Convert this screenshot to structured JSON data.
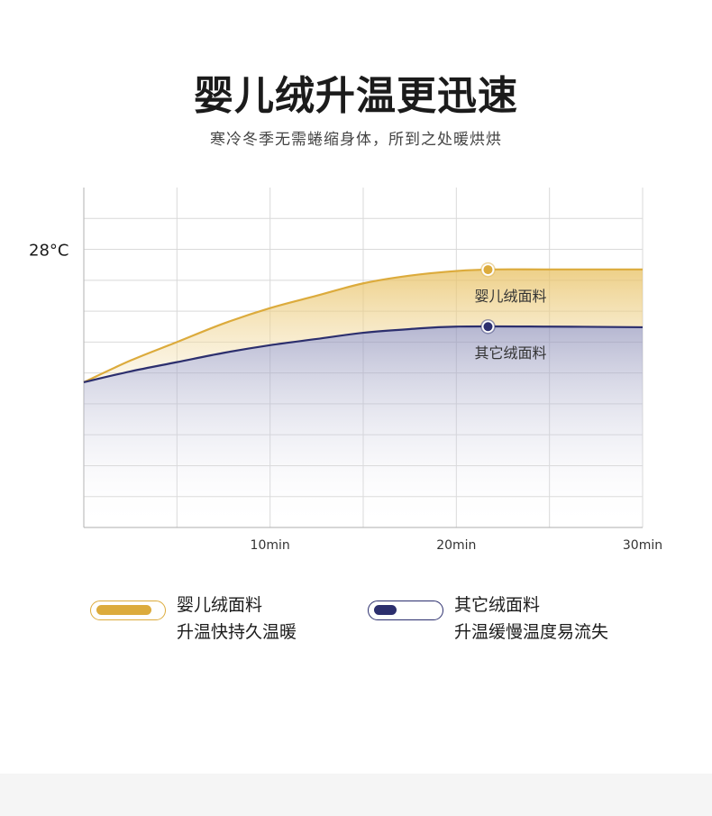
{
  "header": {
    "title": "婴儿绒升温更迅速",
    "subtitle": "寒冷冬季无需蜷缩身体，所到之处暖烘烘"
  },
  "colors": {
    "gold": "#dcab3c",
    "navy": "#2c2f6e",
    "grid": "#d9d9d9"
  },
  "chart_data": {
    "type": "area",
    "title": "",
    "xlabel": "",
    "ylabel": "",
    "xlim": [
      0,
      30
    ],
    "ylim": [
      19,
      30
    ],
    "x_ticks": [
      10,
      20,
      30
    ],
    "x_tick_labels": [
      "10min",
      "20min",
      "30min"
    ],
    "y_tick_labels": [
      {
        "value": 28,
        "label": "28°C"
      }
    ],
    "grid": true,
    "series": [
      {
        "name": "婴儿绒面料",
        "color": "#dcab3c",
        "x": [
          0,
          2.5,
          5,
          7.5,
          10,
          12.5,
          15,
          17.5,
          20,
          22,
          25,
          30
        ],
        "y": [
          23.7,
          24.4,
          25.0,
          25.6,
          26.1,
          26.5,
          26.9,
          27.15,
          27.3,
          27.35,
          27.35,
          27.35
        ],
        "marker_x": 21.7,
        "label": "婴儿绒面料"
      },
      {
        "name": "其它绒面料",
        "color": "#2c2f6e",
        "x": [
          0,
          2.5,
          5,
          7.5,
          10,
          12.5,
          15,
          17.5,
          20,
          25,
          30
        ],
        "y": [
          23.7,
          24.05,
          24.35,
          24.65,
          24.9,
          25.1,
          25.3,
          25.42,
          25.5,
          25.5,
          25.48
        ],
        "marker_x": 21.7,
        "label": "其它绒面料"
      }
    ]
  },
  "legend": [
    {
      "line1": "婴儿绒面料",
      "line2": "升温快持久温暖",
      "color": "#dcab3c",
      "level": 0.85
    },
    {
      "line1": "其它绒面料",
      "line2": "升温缓慢温度易流失",
      "color": "#2c2f6e",
      "level": 0.35
    }
  ]
}
